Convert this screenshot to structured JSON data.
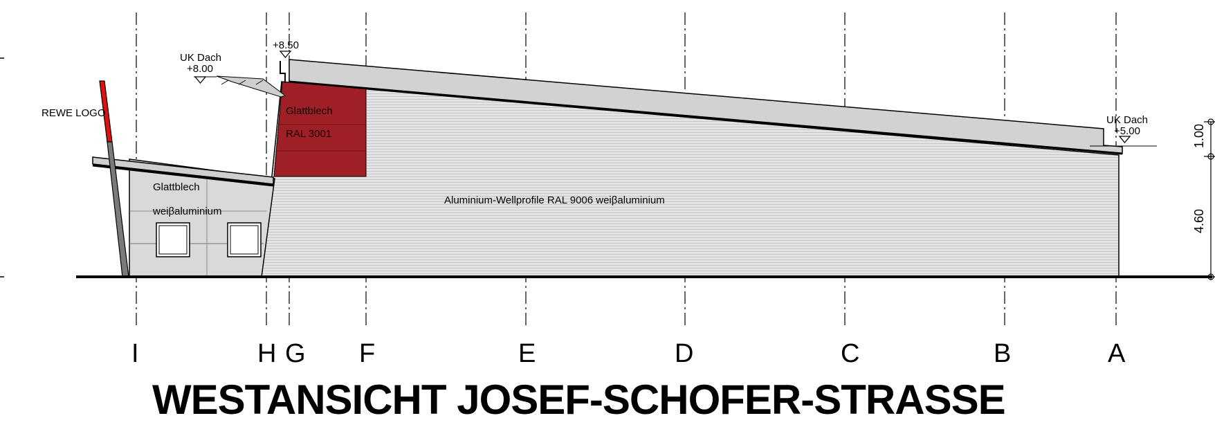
{
  "title": "WESTANSICHT JOSEF-SCHOFER-STRASSE",
  "axes": [
    "I",
    "H",
    "G",
    "F",
    "E",
    "D",
    "C",
    "B",
    "A"
  ],
  "annotations": {
    "rewe_logo": "REWE LOGO",
    "uk_dach_left": "UK Dach",
    "level_left": "+8.00",
    "level_top": "+8.50",
    "uk_dach_right": "UK Dach",
    "level_right": "+5.00",
    "glattblech_red": "Glattblech",
    "ral_red": "RAL 3001",
    "glattblech_white": "Glattblech",
    "weissaluminium": "weiβaluminium",
    "wellprofile": "Aluminium-Wellprofile RAL 9006 weiβaluminium"
  },
  "dimensions": {
    "upper": "1.00",
    "lower": "4.60"
  },
  "colors": {
    "roof": "#d2d2d2",
    "wall": "#e6e6e6",
    "red_panel": "#9e1f25",
    "logo_red": "#e01010",
    "line": "#000000"
  }
}
